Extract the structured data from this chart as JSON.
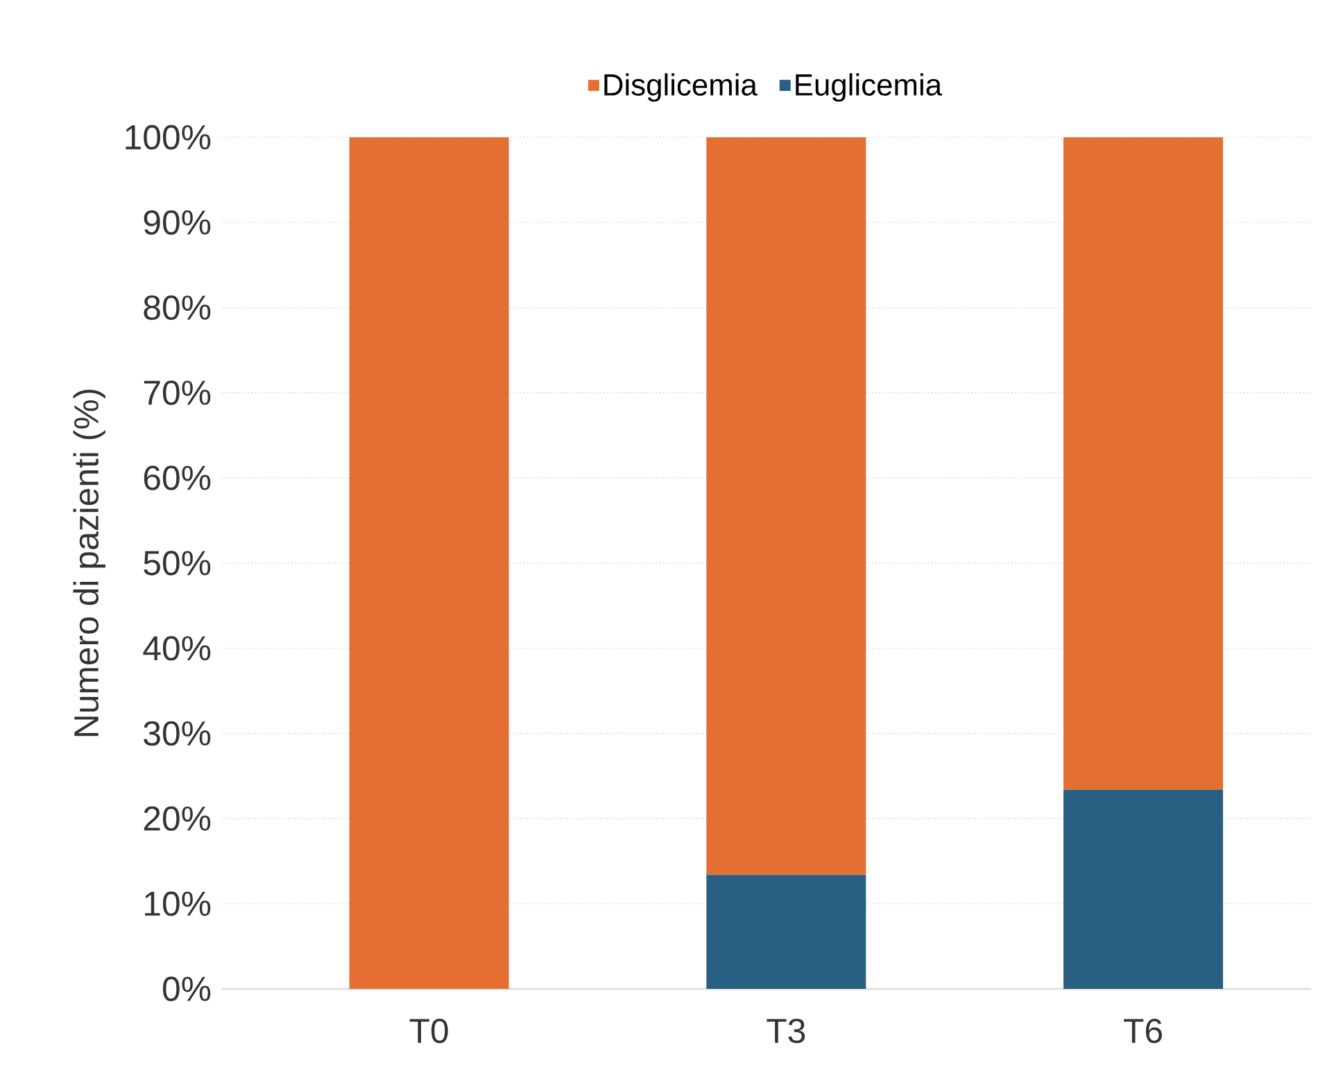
{
  "chart_data": {
    "type": "bar",
    "stacked": true,
    "ylabel": "Numero di pazienti (%)",
    "categories": [
      "T0",
      "T3",
      "T6"
    ],
    "series": [
      {
        "name": "Euglicemia",
        "color": "#2a5f84",
        "values": [
          0,
          13.4,
          23.4
        ]
      },
      {
        "name": "Disglicemia",
        "color": "#e56f33",
        "values": [
          100,
          86.6,
          76.6
        ]
      }
    ],
    "ylim": [
      0,
      100
    ],
    "yticks": [
      {
        "value": 0,
        "label": "0%"
      },
      {
        "value": 10,
        "label": "10%"
      },
      {
        "value": 20,
        "label": "20%"
      },
      {
        "value": 30,
        "label": "30%"
      },
      {
        "value": 40,
        "label": "40%"
      },
      {
        "value": 50,
        "label": "50%"
      },
      {
        "value": 60,
        "label": "60%"
      },
      {
        "value": 70,
        "label": "70%"
      },
      {
        "value": 80,
        "label": "80%"
      },
      {
        "value": 90,
        "label": "90%"
      },
      {
        "value": 100,
        "label": "100%"
      }
    ],
    "grid": "y",
    "legend": "top"
  }
}
